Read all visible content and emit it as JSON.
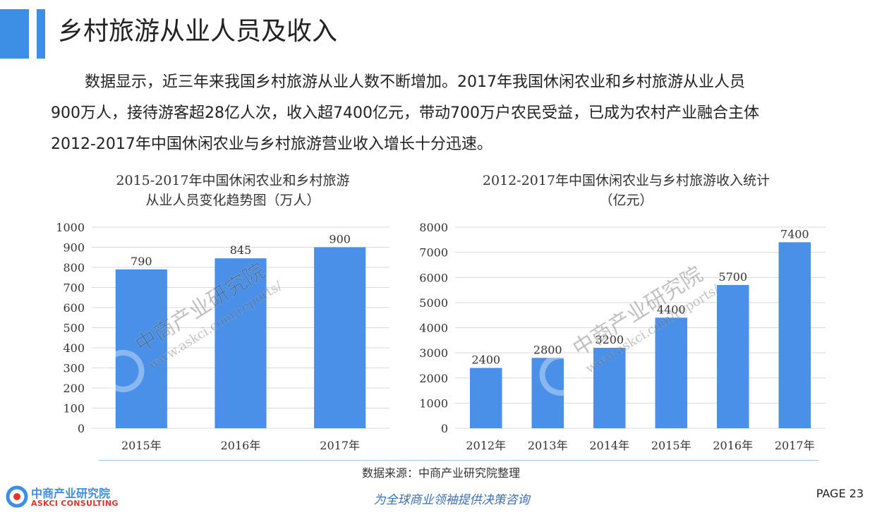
{
  "header": {
    "title": "乡村旅游从业人员及收入"
  },
  "colors": {
    "accent": "#3d8fe6",
    "bar": "#4a90e8",
    "grid": "#d9d9d9",
    "rule": "#a8c8ea",
    "brand_red": "#e5332a",
    "tagline": "#3a6fc0"
  },
  "body": {
    "line1": "数据显示，近三年来我国乡村旅游从业人数不断增加。2017年我国休闲农业和乡村旅游从业人员",
    "line2": "900万人，接待游客超28亿人次，收入超7400亿元，带动700万户农民受益，已成为农村产业融合主体",
    "line3": "2012-2017年中国休闲农业与乡村旅游营业收入增长十分迅速。"
  },
  "chart_data": [
    {
      "type": "bar",
      "title_line1": "2015-2017年中国休闲农业和乡村旅游",
      "title_line2": "从业人员变化趋势图（万人）",
      "categories": [
        "2015年",
        "2016年",
        "2017年"
      ],
      "values": [
        790,
        845,
        900
      ],
      "data_labels": [
        "790",
        "845",
        "900"
      ],
      "ylim": [
        0,
        1000
      ],
      "yticks": [
        0,
        100,
        200,
        300,
        400,
        500,
        600,
        700,
        800,
        900,
        1000
      ],
      "grid": true,
      "legend": "none"
    },
    {
      "type": "bar",
      "title_line1": "2012-2017年中国休闲农业与乡村旅游收入统计",
      "title_line2": "（亿元）",
      "categories": [
        "2012年",
        "2013年",
        "2014年",
        "2015年",
        "2016年",
        "2017年"
      ],
      "values": [
        2400,
        2800,
        3200,
        4400,
        5700,
        7400
      ],
      "data_labels": [
        "2400",
        "2800",
        "3200",
        "4400",
        "5700",
        "7400"
      ],
      "ylim": [
        0,
        8000
      ],
      "yticks": [
        0,
        1000,
        2000,
        3000,
        4000,
        5000,
        6000,
        7000,
        8000
      ],
      "grid": true,
      "legend": "none"
    }
  ],
  "watermark": {
    "cn": "中商产业研究院",
    "url": "www.askci.com/reports/"
  },
  "footer": {
    "source": "数据来源：中商产业研究院整理",
    "tagline": "为全球商业领袖提供决策咨询",
    "page": "PAGE 23",
    "logo_cn": "中商产业研究院",
    "logo_en": "ASKCI CONSULTING"
  }
}
